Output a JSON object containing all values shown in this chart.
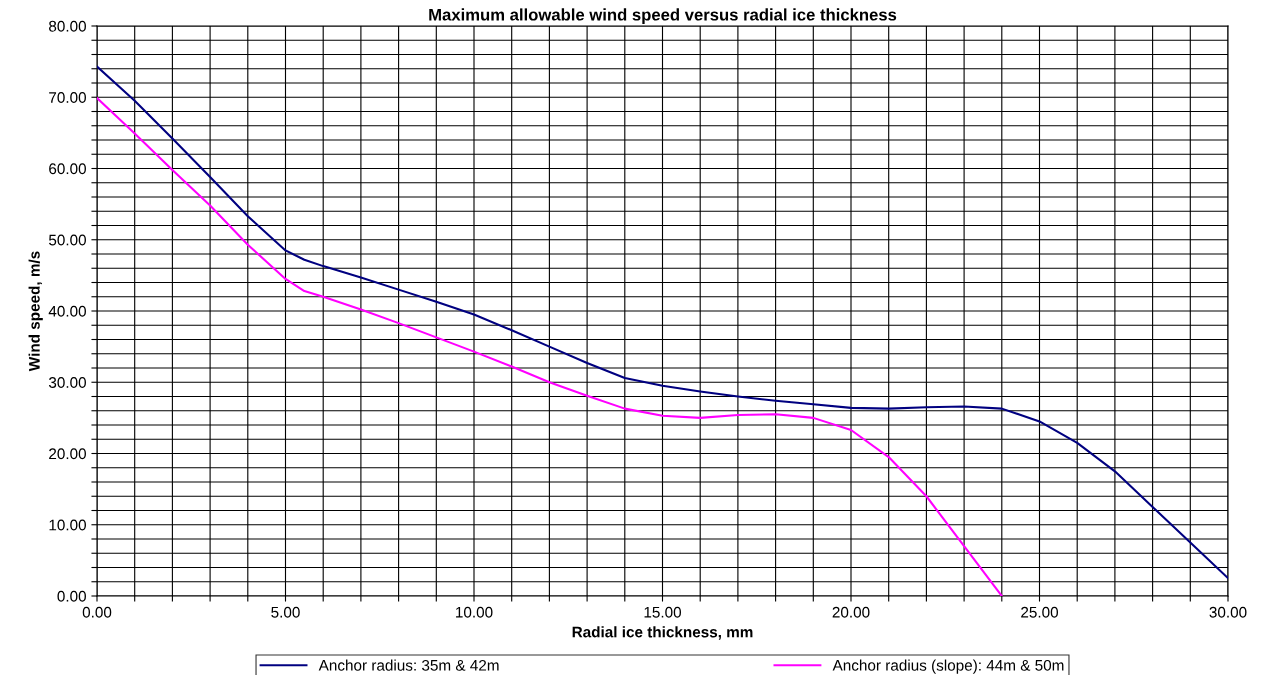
{
  "chart_data": {
    "type": "line",
    "title": "Maximum allowable wind speed versus radial ice thickness",
    "xlabel": "Radial ice thickness, mm",
    "ylabel": "Wind speed, m/s",
    "series": [
      {
        "name": "Anchor radius: 35m & 42m",
        "color": "#000080",
        "x": [
          0,
          1,
          2,
          3,
          4,
          5,
          5.5,
          6,
          7,
          8,
          9,
          10,
          11,
          12,
          13,
          14,
          15,
          16,
          17,
          18,
          19,
          20,
          21,
          22,
          23,
          24,
          25,
          26,
          27,
          28,
          29,
          30
        ],
        "values": [
          74.3,
          69.5,
          64.2,
          58.8,
          53.3,
          48.5,
          47.2,
          46.3,
          44.7,
          43,
          41.3,
          39.5,
          37.3,
          35,
          32.7,
          30.6,
          29.5,
          28.7,
          28.0,
          27.4,
          26.9,
          26.4,
          26.3,
          26.5,
          26.6,
          26.3,
          24.5,
          21.5,
          17.5,
          12.5,
          7.5,
          2.5
        ]
      },
      {
        "name": "Anchor radius (slope): 44m & 50m",
        "color": "#ff00ff",
        "x": [
          0,
          1,
          2,
          3,
          4,
          5,
          5.5,
          6,
          7,
          8,
          9,
          10,
          11,
          12,
          13,
          14,
          15,
          16,
          17,
          18,
          19,
          20,
          21,
          22,
          23,
          24
        ],
        "values": [
          69.9,
          64.9,
          59.8,
          54.8,
          49.3,
          44.5,
          42.8,
          42,
          40.2,
          38.3,
          36.3,
          34.3,
          32.2,
          30.0,
          28.1,
          26.3,
          25.3,
          25.0,
          25.4,
          25.5,
          25.0,
          23.3,
          19.5,
          14,
          7,
          0
        ]
      }
    ],
    "xlim": [
      0,
      30
    ],
    "ylim": [
      0,
      80
    ],
    "xticks": [
      {
        "value": 0,
        "label": "0.00"
      },
      {
        "value": 1,
        "label": null
      },
      {
        "value": 2,
        "label": null
      },
      {
        "value": 3,
        "label": null
      },
      {
        "value": 4,
        "label": null
      },
      {
        "value": 5,
        "label": "5.00"
      },
      {
        "value": 6,
        "label": null
      },
      {
        "value": 7,
        "label": null
      },
      {
        "value": 8,
        "label": null
      },
      {
        "value": 9,
        "label": null
      },
      {
        "value": 10,
        "label": "10.00"
      },
      {
        "value": 11,
        "label": null
      },
      {
        "value": 12,
        "label": null
      },
      {
        "value": 13,
        "label": null
      },
      {
        "value": 14,
        "label": null
      },
      {
        "value": 15,
        "label": "15.00"
      },
      {
        "value": 16,
        "label": null
      },
      {
        "value": 17,
        "label": null
      },
      {
        "value": 18,
        "label": null
      },
      {
        "value": 19,
        "label": null
      },
      {
        "value": 20,
        "label": "20.00"
      },
      {
        "value": 21,
        "label": null
      },
      {
        "value": 22,
        "label": null
      },
      {
        "value": 23,
        "label": null
      },
      {
        "value": 24,
        "label": null
      },
      {
        "value": 25,
        "label": "25.00"
      },
      {
        "value": 26,
        "label": null
      },
      {
        "value": 27,
        "label": null
      },
      {
        "value": 28,
        "label": null
      },
      {
        "value": 29,
        "label": null
      },
      {
        "value": 30,
        "label": "30.00"
      }
    ],
    "yticks": [
      {
        "value": 0,
        "label": "0.00"
      },
      {
        "value": 2,
        "label": null
      },
      {
        "value": 4,
        "label": null
      },
      {
        "value": 6,
        "label": null
      },
      {
        "value": 8,
        "label": null
      },
      {
        "value": 10,
        "label": "10.00"
      },
      {
        "value": 12,
        "label": null
      },
      {
        "value": 14,
        "label": null
      },
      {
        "value": 16,
        "label": null
      },
      {
        "value": 18,
        "label": null
      },
      {
        "value": 20,
        "label": "20.00"
      },
      {
        "value": 22,
        "label": null
      },
      {
        "value": 24,
        "label": null
      },
      {
        "value": 26,
        "label": null
      },
      {
        "value": 28,
        "label": null
      },
      {
        "value": 30,
        "label": "30.00"
      },
      {
        "value": 32,
        "label": null
      },
      {
        "value": 34,
        "label": null
      },
      {
        "value": 36,
        "label": null
      },
      {
        "value": 38,
        "label": null
      },
      {
        "value": 40,
        "label": "40.00"
      },
      {
        "value": 42,
        "label": null
      },
      {
        "value": 44,
        "label": null
      },
      {
        "value": 46,
        "label": null
      },
      {
        "value": 48,
        "label": null
      },
      {
        "value": 50,
        "label": "50.00"
      },
      {
        "value": 52,
        "label": null
      },
      {
        "value": 54,
        "label": null
      },
      {
        "value": 56,
        "label": null
      },
      {
        "value": 58,
        "label": null
      },
      {
        "value": 60,
        "label": "60.00"
      },
      {
        "value": 62,
        "label": null
      },
      {
        "value": 64,
        "label": null
      },
      {
        "value": 66,
        "label": null
      },
      {
        "value": 68,
        "label": null
      },
      {
        "value": 70,
        "label": "70.00"
      },
      {
        "value": 72,
        "label": null
      },
      {
        "value": 74,
        "label": null
      },
      {
        "value": 76,
        "label": null
      },
      {
        "value": 78,
        "label": null
      },
      {
        "value": 80,
        "label": "80.00"
      }
    ],
    "grid": true,
    "legend": "bottom",
    "marker": "none",
    "line_style": "solid"
  }
}
